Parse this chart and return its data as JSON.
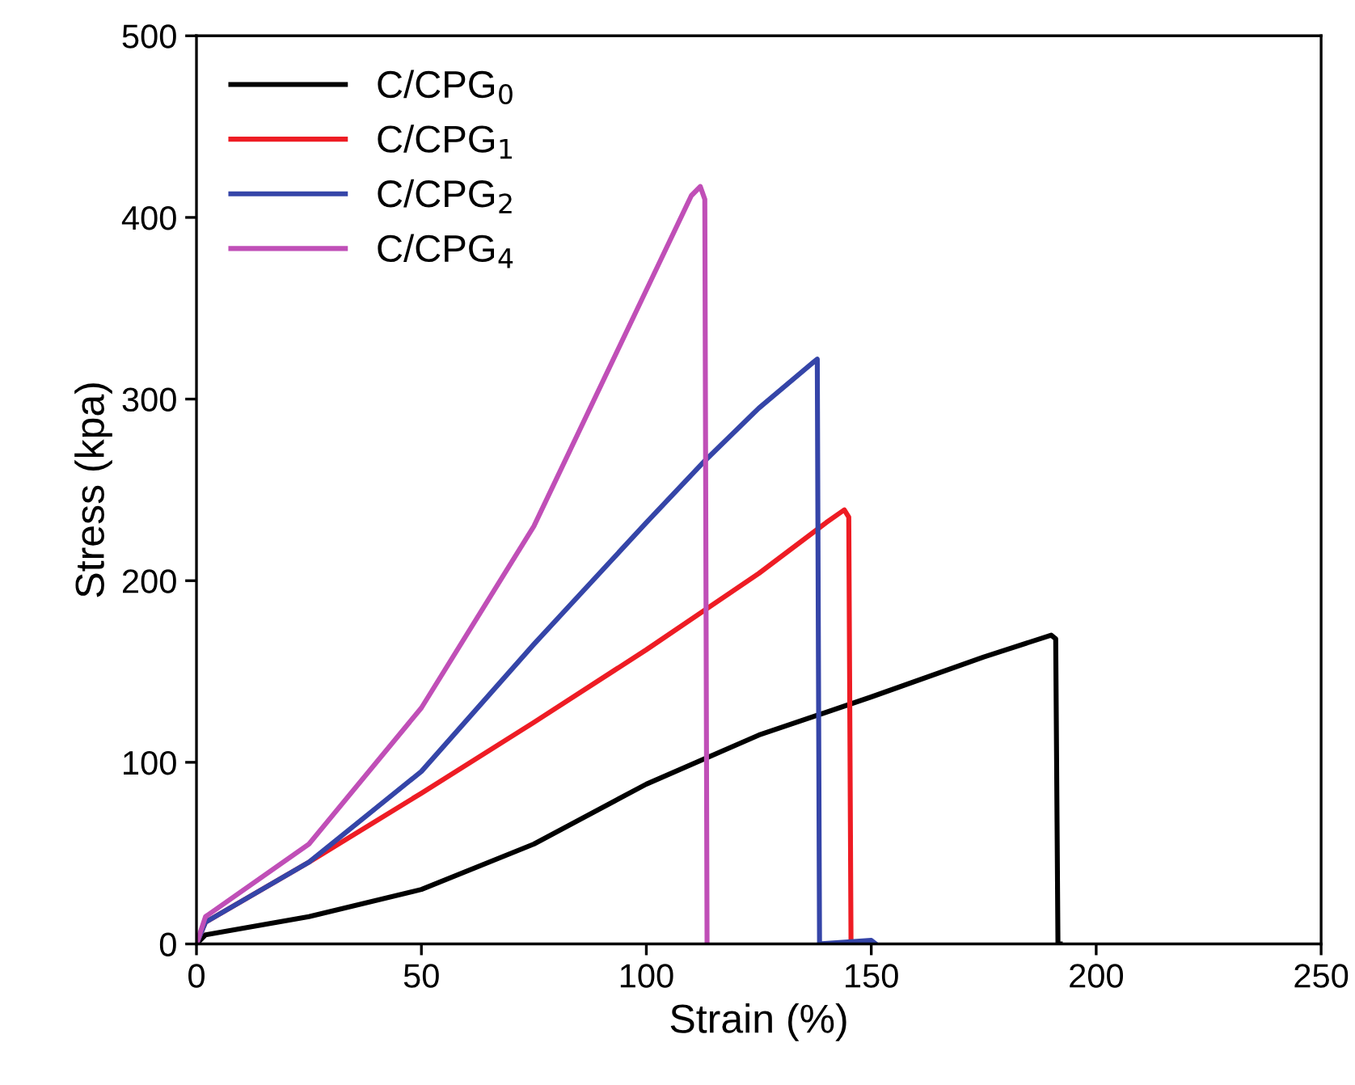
{
  "chart_data": {
    "type": "line",
    "xlabel": "Strain (%)",
    "ylabel": "Stress (kpa)",
    "xlim": [
      0,
      250
    ],
    "ylim": [
      0,
      500
    ],
    "xticks": [
      0,
      50,
      100,
      150,
      200,
      250
    ],
    "yticks": [
      0,
      100,
      200,
      300,
      400,
      500
    ],
    "grid": false,
    "legend": "top left",
    "marker": "none",
    "line_style": "solid",
    "series": [
      {
        "name": "C/CPG$_{0}$",
        "color": "#000000",
        "x": [
          0,
          2,
          25,
          50,
          75,
          100,
          125,
          150,
          175,
          190,
          191,
          191.5,
          192
        ],
        "values": [
          0,
          5,
          15,
          30,
          55,
          88,
          115,
          136,
          158,
          170,
          168,
          0,
          0
        ]
      },
      {
        "name": "C/CPG$_{1}$",
        "color": "#ee1c24",
        "x": [
          0,
          2,
          25,
          50,
          75,
          100,
          125,
          140,
          144,
          145,
          145.5,
          150
        ],
        "values": [
          0,
          12,
          45,
          83,
          122,
          162,
          204,
          232,
          239,
          235,
          0,
          0
        ]
      },
      {
        "name": "C/CPG$_{2}$",
        "color": "#3545a8",
        "x": [
          0,
          2,
          25,
          50,
          75,
          100,
          113,
          125,
          137,
          138,
          138.5,
          150,
          151
        ],
        "values": [
          0,
          12,
          45,
          95,
          165,
          232,
          266,
          295,
          320,
          322,
          0,
          2,
          0
        ]
      },
      {
        "name": "C/CPG$_{4}$",
        "color": "#c04fb7",
        "x": [
          0,
          2,
          25,
          50,
          75,
          100,
          110,
          112,
          113,
          113.5
        ],
        "values": [
          0,
          15,
          55,
          130,
          230,
          360,
          412,
          417,
          410,
          0
        ]
      }
    ]
  }
}
